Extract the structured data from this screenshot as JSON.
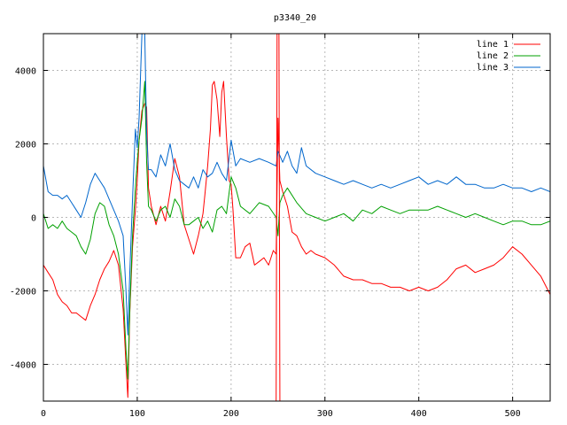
{
  "chart_data": {
    "type": "line",
    "title": "p3340_20",
    "xlabel": "",
    "ylabel": "",
    "xlim": [
      0,
      540
    ],
    "ylim": [
      -5000,
      5000
    ],
    "xticks": [
      0,
      100,
      200,
      300,
      400,
      500
    ],
    "yticks": [
      -4000,
      -2000,
      0,
      2000,
      4000
    ],
    "grid": true,
    "legend_position": "top-right",
    "series": [
      {
        "name": "line 1",
        "color": "#ff0000",
        "x": [
          0,
          5,
          10,
          15,
          20,
          25,
          30,
          35,
          40,
          45,
          50,
          55,
          60,
          65,
          70,
          75,
          80,
          85,
          88,
          90,
          92,
          95,
          98,
          100,
          102,
          105,
          108,
          110,
          112,
          115,
          120,
          125,
          130,
          135,
          140,
          145,
          150,
          155,
          160,
          165,
          170,
          172,
          175,
          178,
          180,
          182,
          185,
          188,
          190,
          192,
          195,
          198,
          200,
          202,
          205,
          210,
          215,
          220,
          225,
          230,
          235,
          240,
          245,
          248,
          250,
          252,
          255,
          260,
          265,
          270,
          275,
          280,
          285,
          290,
          300,
          310,
          320,
          330,
          340,
          350,
          360,
          370,
          380,
          390,
          400,
          410,
          420,
          430,
          440,
          450,
          460,
          470,
          480,
          490,
          500,
          510,
          520,
          530,
          540
        ],
        "y": [
          -1300,
          -1500,
          -1700,
          -2100,
          -2300,
          -2400,
          -2600,
          -2600,
          -2700,
          -2800,
          -2400,
          -2100,
          -1700,
          -1400,
          -1200,
          -900,
          -1300,
          -2500,
          -4000,
          -4900,
          -2600,
          -800,
          200,
          1000,
          2100,
          2900,
          3100,
          3000,
          800,
          300,
          -200,
          300,
          -100,
          700,
          1600,
          1100,
          -200,
          -600,
          -1000,
          -500,
          100,
          600,
          1400,
          2400,
          3600,
          3700,
          3200,
          2200,
          3400,
          3700,
          2200,
          1000,
          900,
          200,
          -1100,
          -1100,
          -800,
          -700,
          -1300,
          -1200,
          -1100,
          -1300,
          -900,
          -1000,
          2700,
          1000,
          700,
          300,
          -400,
          -500,
          -800,
          -1000,
          -900,
          -1000,
          -1100,
          -1300,
          -1600,
          -1700,
          -1700,
          -1800,
          -1800,
          -1900,
          -1900,
          -2000,
          -1900,
          -2000,
          -1900,
          -1700,
          -1400,
          -1300,
          -1500,
          -1400,
          -1300,
          -1100,
          -800,
          -1000,
          -1300,
          -1600,
          -2100
        ]
      },
      {
        "name": "line 2",
        "color": "#00a000",
        "x": [
          0,
          5,
          10,
          15,
          20,
          25,
          30,
          35,
          40,
          45,
          50,
          55,
          60,
          65,
          70,
          75,
          80,
          85,
          88,
          90,
          92,
          95,
          98,
          100,
          102,
          105,
          108,
          110,
          112,
          115,
          120,
          125,
          130,
          135,
          140,
          145,
          150,
          155,
          160,
          165,
          170,
          175,
          180,
          185,
          190,
          195,
          200,
          205,
          210,
          220,
          230,
          240,
          248,
          250,
          252,
          255,
          260,
          270,
          280,
          290,
          300,
          310,
          320,
          330,
          340,
          350,
          360,
          370,
          380,
          390,
          400,
          410,
          420,
          430,
          440,
          450,
          460,
          470,
          480,
          490,
          500,
          510,
          520,
          530,
          540
        ],
        "y": [
          100,
          -300,
          -200,
          -300,
          -100,
          -300,
          -400,
          -500,
          -800,
          -1000,
          -600,
          100,
          400,
          300,
          -200,
          -500,
          -1000,
          -2000,
          -3600,
          -4400,
          -2500,
          -500,
          800,
          1500,
          2100,
          2700,
          3700,
          1500,
          300,
          200,
          -100,
          200,
          300,
          0,
          500,
          300,
          -200,
          -200,
          -100,
          0,
          -300,
          -100,
          -400,
          200,
          300,
          100,
          1100,
          800,
          300,
          100,
          400,
          300,
          0,
          -500,
          400,
          600,
          800,
          400,
          100,
          0,
          -100,
          0,
          100,
          -100,
          200,
          100,
          300,
          200,
          100,
          200,
          200,
          200,
          300,
          200,
          100,
          0,
          100,
          0,
          -100,
          -200,
          -100,
          -100,
          -200,
          -200,
          -100
        ]
      },
      {
        "name": "line 3",
        "color": "#0066cc",
        "x": [
          0,
          5,
          10,
          15,
          20,
          25,
          30,
          35,
          40,
          45,
          50,
          55,
          60,
          65,
          70,
          75,
          80,
          85,
          88,
          90,
          92,
          95,
          98,
          100,
          102,
          105,
          108,
          110,
          112,
          115,
          120,
          125,
          130,
          135,
          140,
          145,
          150,
          155,
          160,
          165,
          170,
          175,
          180,
          185,
          190,
          195,
          200,
          205,
          210,
          220,
          230,
          240,
          248,
          250,
          255,
          260,
          265,
          270,
          275,
          280,
          290,
          300,
          310,
          320,
          330,
          340,
          350,
          360,
          370,
          380,
          390,
          400,
          410,
          420,
          430,
          440,
          450,
          460,
          470,
          480,
          490,
          500,
          510,
          520,
          530,
          540
        ],
        "y": [
          1400,
          700,
          600,
          600,
          500,
          600,
          400,
          200,
          0,
          400,
          900,
          1200,
          1000,
          800,
          500,
          200,
          -100,
          -500,
          -2000,
          -3200,
          -1500,
          500,
          2400,
          1900,
          2700,
          5000,
          5000,
          2300,
          1300,
          1300,
          1100,
          1700,
          1400,
          2000,
          1300,
          1000,
          900,
          800,
          1100,
          800,
          1300,
          1100,
          1200,
          1500,
          1200,
          1000,
          2100,
          1400,
          1600,
          1500,
          1600,
          1500,
          1400,
          1800,
          1500,
          1800,
          1400,
          1200,
          1900,
          1400,
          1200,
          1100,
          1000,
          900,
          1000,
          900,
          800,
          900,
          800,
          900,
          1000,
          1100,
          900,
          1000,
          900,
          1100,
          900,
          900,
          800,
          800,
          900,
          800,
          800,
          700,
          800,
          700
        ]
      }
    ]
  }
}
